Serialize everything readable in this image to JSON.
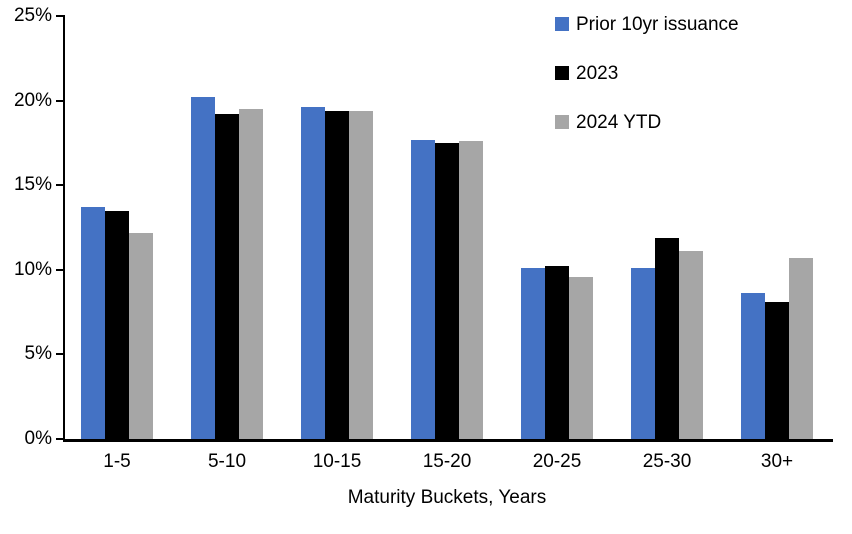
{
  "chart_data": {
    "type": "bar",
    "title": "",
    "xlabel": "Maturity Buckets, Years",
    "ylabel": "",
    "categories": [
      "1-5",
      "5-10",
      "10-15",
      "15-20",
      "20-25",
      "25-30",
      "30+"
    ],
    "series": [
      {
        "name": "Prior 10yr issuance",
        "color": "#4472C4",
        "values": [
          13.7,
          20.2,
          19.6,
          17.7,
          10.1,
          10.1,
          8.6
        ]
      },
      {
        "name": "2023",
        "color": "#000000",
        "values": [
          13.5,
          19.2,
          19.4,
          17.5,
          10.2,
          11.9,
          8.1
        ]
      },
      {
        "name": "2024 YTD",
        "color": "#A6A6A6",
        "values": [
          12.2,
          19.5,
          19.4,
          17.6,
          9.6,
          11.1,
          10.7
        ]
      }
    ],
    "y_axis": {
      "min": 0,
      "max": 25,
      "tick_step": 5,
      "tick_labels": [
        "0%",
        "5%",
        "10%",
        "15%",
        "20%",
        "25%"
      ]
    },
    "legend_position": "top-right",
    "grid": false,
    "axis_color": "#000000",
    "background": "#FFFFFF"
  }
}
